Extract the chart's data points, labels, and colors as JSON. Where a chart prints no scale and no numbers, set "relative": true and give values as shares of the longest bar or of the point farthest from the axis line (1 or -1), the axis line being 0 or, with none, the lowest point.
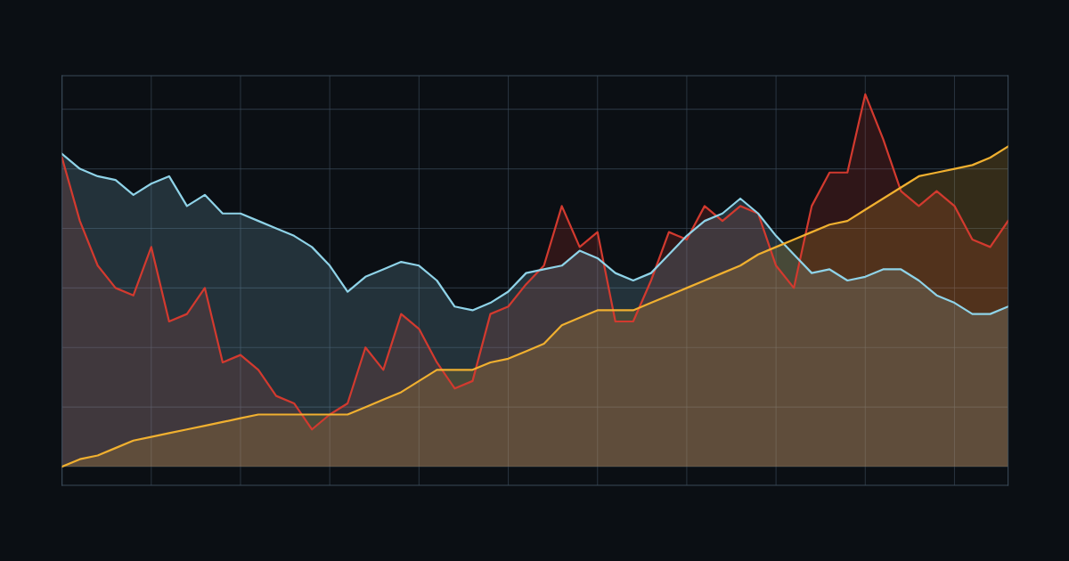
{
  "chart_data": {
    "type": "area",
    "relative": true,
    "grid": true,
    "legend": false,
    "categories": [
      null,
      null,
      null,
      null,
      null,
      null,
      null,
      null,
      null,
      null,
      null,
      null,
      null,
      null,
      null,
      null,
      null,
      null,
      null,
      null,
      null,
      null,
      null,
      null,
      null,
      null,
      null,
      null,
      null,
      null,
      null,
      null,
      null,
      null,
      null,
      null,
      null,
      null,
      null,
      null,
      null,
      null,
      null,
      null,
      null,
      null,
      null,
      null,
      null,
      null,
      null,
      null,
      null,
      null
    ],
    "series": [
      {
        "color": "#d23a2f",
        "values": [
          0.83,
          0.66,
          0.54,
          0.48,
          0.46,
          0.59,
          0.39,
          0.41,
          0.48,
          0.28,
          0.3,
          0.26,
          0.19,
          0.17,
          0.1,
          0.14,
          0.17,
          0.32,
          0.26,
          0.41,
          0.37,
          0.28,
          0.21,
          0.23,
          0.41,
          0.43,
          0.49,
          0.54,
          0.7,
          0.59,
          0.63,
          0.39,
          0.39,
          0.5,
          0.63,
          0.61,
          0.7,
          0.66,
          0.7,
          0.68,
          0.54,
          0.48,
          0.7,
          0.79,
          0.79,
          1.0,
          0.88,
          0.74,
          0.7,
          0.74,
          0.7,
          0.61,
          0.59,
          0.66
        ]
      },
      {
        "color": "#8fd3e8",
        "values": [
          0.84,
          0.8,
          0.78,
          0.77,
          0.73,
          0.76,
          0.78,
          0.7,
          0.73,
          0.68,
          0.68,
          0.66,
          0.64,
          0.62,
          0.59,
          0.54,
          0.47,
          0.51,
          0.53,
          0.55,
          0.54,
          0.5,
          0.43,
          0.42,
          0.44,
          0.47,
          0.52,
          0.53,
          0.54,
          0.58,
          0.56,
          0.52,
          0.5,
          0.52,
          0.57,
          0.62,
          0.66,
          0.68,
          0.72,
          0.68,
          0.62,
          0.57,
          0.52,
          0.53,
          0.5,
          0.51,
          0.53,
          0.53,
          0.5,
          0.46,
          0.44,
          0.41,
          0.41,
          0.43
        ]
      },
      {
        "color": "#f0b030",
        "values": [
          0,
          0.02,
          0.03,
          0.05,
          0.07,
          0.08,
          0.09,
          0.1,
          0.11,
          0.12,
          0.13,
          0.14,
          0.14,
          0.14,
          0.14,
          0.14,
          0.14,
          0.16,
          0.18,
          0.2,
          0.23,
          0.26,
          0.26,
          0.26,
          0.28,
          0.29,
          0.31,
          0.33,
          0.38,
          0.4,
          0.42,
          0.42,
          0.42,
          0.44,
          0.46,
          0.48,
          0.5,
          0.52,
          0.54,
          0.57,
          0.59,
          0.61,
          0.63,
          0.65,
          0.66,
          0.69,
          0.72,
          0.75,
          0.78,
          0.79,
          0.8,
          0.81,
          0.83,
          0.86
        ]
      }
    ]
  }
}
